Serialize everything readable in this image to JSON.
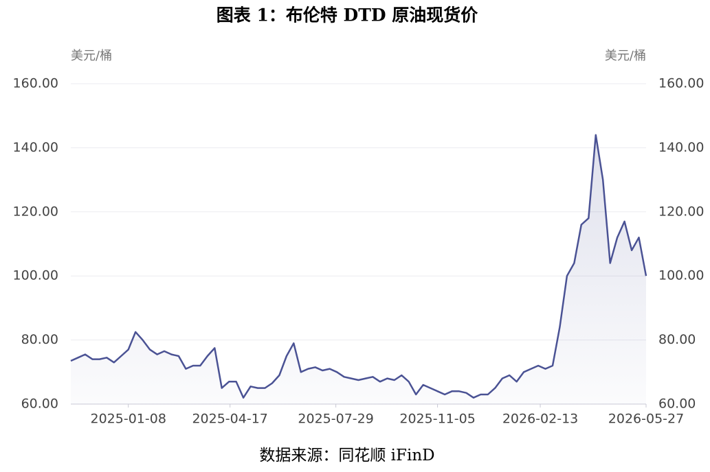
{
  "chart_data": {
    "type": "line",
    "title": "图表 1：布伦特 DTD 原油现货价",
    "y_label": "美元/桶",
    "y2_label": "美元/桶",
    "source": "数据来源：同花顺 iFinD",
    "x": [
      "2024-11-13",
      "2024-11-20",
      "2024-11-27",
      "2024-12-04",
      "2024-12-11",
      "2024-12-18",
      "2024-12-25",
      "2025-01-01",
      "2025-01-08",
      "2025-01-15",
      "2025-01-22",
      "2025-01-29",
      "2025-02-05",
      "2025-02-12",
      "2025-02-19",
      "2025-02-26",
      "2025-03-05",
      "2025-03-12",
      "2025-03-19",
      "2025-03-26",
      "2025-04-02",
      "2025-04-09",
      "2025-04-16",
      "2025-04-23",
      "2025-04-30",
      "2025-05-07",
      "2025-05-14",
      "2025-05-21",
      "2025-05-28",
      "2025-06-04",
      "2025-06-11",
      "2025-06-18",
      "2025-06-25",
      "2025-07-02",
      "2025-07-09",
      "2025-07-16",
      "2025-07-23",
      "2025-07-30",
      "2025-08-06",
      "2025-08-13",
      "2025-08-20",
      "2025-08-27",
      "2025-09-03",
      "2025-09-10",
      "2025-09-17",
      "2025-09-24",
      "2025-10-01",
      "2025-10-08",
      "2025-10-15",
      "2025-10-22",
      "2025-10-29",
      "2025-11-05",
      "2025-11-12",
      "2025-11-19",
      "2025-11-26",
      "2025-12-03",
      "2025-12-10",
      "2025-12-17",
      "2025-12-24",
      "2025-12-31",
      "2026-01-07",
      "2026-01-14",
      "2026-01-21",
      "2026-01-28",
      "2026-02-04",
      "2026-02-11",
      "2026-02-18",
      "2026-02-25",
      "2026-03-04",
      "2026-03-11",
      "2026-03-18",
      "2026-03-25",
      "2026-04-01",
      "2026-04-08",
      "2026-04-15",
      "2026-04-22",
      "2026-04-29",
      "2026-05-06",
      "2026-05-13",
      "2026-05-20",
      "2026-05-27"
    ],
    "series": [
      {
        "name": "布伦特 DTD 原油现货价",
        "color": "#4a5294",
        "values": [
          73.5,
          74.5,
          75.5,
          74,
          74,
          74.5,
          73,
          75,
          77,
          82.5,
          80,
          77,
          75.5,
          76.5,
          75.5,
          75,
          71,
          72,
          72,
          75,
          77.5,
          65,
          67,
          67,
          62,
          65.5,
          65,
          65,
          66.5,
          69,
          75,
          79,
          70,
          71,
          71.5,
          70.5,
          71,
          70,
          68.5,
          68,
          67.5,
          68,
          68.5,
          67,
          68,
          67.5,
          69,
          67,
          63,
          66,
          65,
          64,
          63,
          64,
          64,
          63.5,
          62,
          63,
          63,
          65,
          68,
          69,
          67,
          70,
          71,
          72,
          71,
          72,
          84,
          100,
          104,
          116,
          118,
          144,
          130,
          104,
          112,
          117,
          108,
          112,
          100
        ]
      }
    ],
    "xlim": [
      "2024-11-13",
      "2026-05-27"
    ],
    "xticks": [
      "2025-01-08",
      "2025-04-17",
      "2025-07-29",
      "2025-11-05",
      "2026-02-13",
      "2026-05-27"
    ],
    "ylim": [
      60,
      160
    ],
    "yticks": [
      {
        "value": 60,
        "label": "60.00"
      },
      {
        "value": 80,
        "label": "80.00"
      },
      {
        "value": 100,
        "label": "100.00"
      },
      {
        "value": 120,
        "label": "120.00"
      },
      {
        "value": 140,
        "label": "140.00"
      },
      {
        "value": 160,
        "label": "160.00"
      }
    ],
    "y2lim": [
      60,
      160
    ],
    "y2ticks": [
      {
        "value": 60,
        "label": "60.00"
      },
      {
        "value": 80,
        "label": "80.00"
      },
      {
        "value": 100,
        "label": "100.00"
      },
      {
        "value": 120,
        "label": "120.00"
      },
      {
        "value": 140,
        "label": "140.00"
      },
      {
        "value": 160,
        "label": "160.00"
      }
    ],
    "grid": true
  }
}
